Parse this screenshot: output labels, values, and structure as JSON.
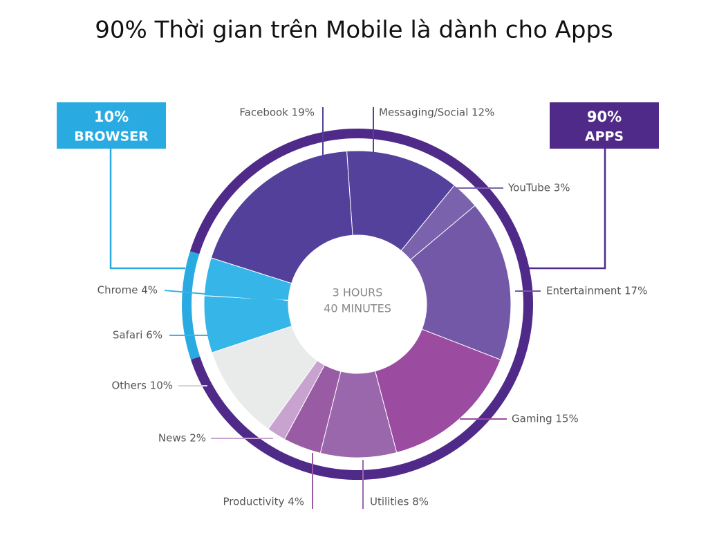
{
  "chart_data": {
    "type": "donut",
    "title": "90% Thời gian trên Mobile là dành cho Apps",
    "center_label": [
      "3 HOURS",
      "40 MINUTES"
    ],
    "values": [
      12,
      3,
      17,
      15,
      8,
      4,
      2,
      10,
      6,
      4,
      19
    ],
    "value_labels": [
      "Messaging/Social 12%",
      "YouTube 3%",
      "Entertainment 17%",
      "Gaming 15%",
      "Utilities 8%",
      "Productivity 4%",
      "News 2%",
      "Others 10%",
      "Safari 6%",
      "Chrome 4%",
      "Facebook 19%"
    ],
    "colors": [
      "#54419c",
      "#7b62ad",
      "#7458a8",
      "#9b4ba0",
      "#9a67ad",
      "#9a5ba5",
      "#c9a3cf",
      "#e9eaea",
      "#35b5e8",
      "#35b5e8",
      "#53409a"
    ],
    "groups": [
      {
        "name": "APPS",
        "value": 90,
        "label": "90%",
        "color": "#4f2a88"
      },
      {
        "name": "BROWSER",
        "value": 10,
        "label": "10%",
        "color": "#29abe2"
      }
    ]
  }
}
